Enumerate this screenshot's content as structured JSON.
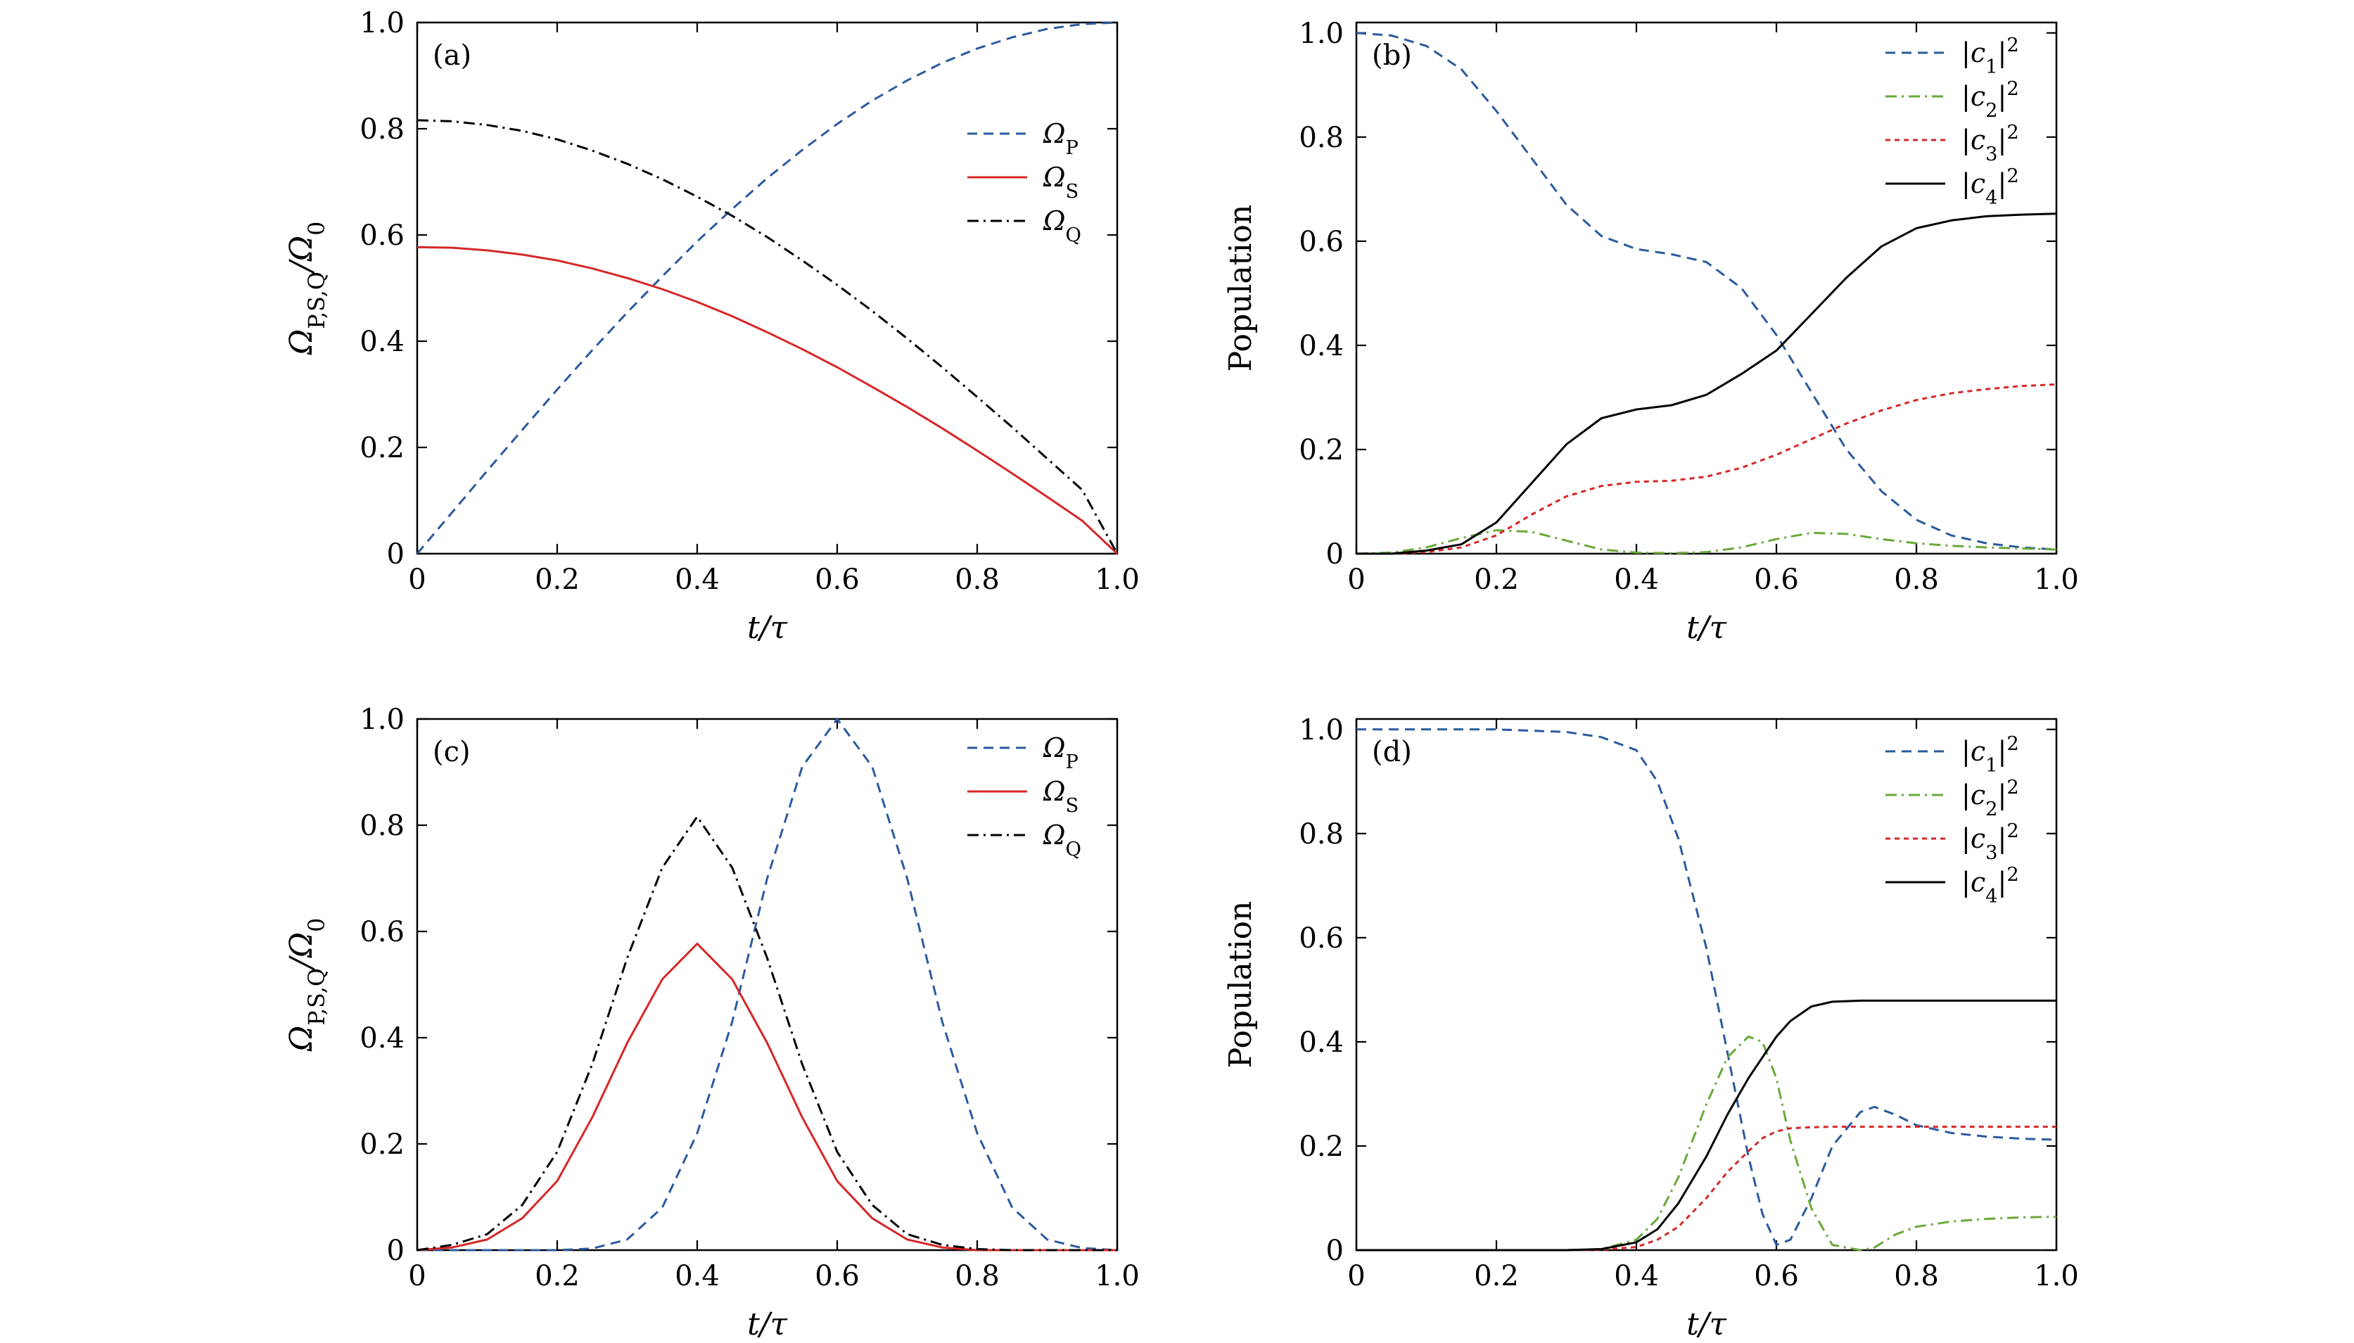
{
  "chart_data": [
    {
      "panel": "(a)",
      "type": "line",
      "xlabel": "t/τ",
      "ylabel": "Ω_{P,S,Q}/Ω_0",
      "xlim": [
        0,
        1
      ],
      "ylim": [
        0,
        1
      ],
      "xticks": [
        "0",
        "0.2",
        "0.4",
        "0.6",
        "0.8",
        "1.0"
      ],
      "yticks": [
        "0",
        "0.2",
        "0.4",
        "0.6",
        "0.8",
        "1.0"
      ],
      "legend_position": "top-right",
      "x": [
        0,
        0.05,
        0.1,
        0.15,
        0.2,
        0.25,
        0.3,
        0.35,
        0.4,
        0.45,
        0.5,
        0.55,
        0.6,
        0.65,
        0.7,
        0.75,
        0.8,
        0.85,
        0.9,
        0.95,
        1.0
      ],
      "series": [
        {
          "name": "Ω_P",
          "style": "dashed",
          "color": "#2b5a9e",
          "values": [
            0,
            0.078,
            0.156,
            0.233,
            0.309,
            0.383,
            0.454,
            0.522,
            0.588,
            0.649,
            0.707,
            0.76,
            0.809,
            0.853,
            0.891,
            0.924,
            0.951,
            0.972,
            0.988,
            0.997,
            1.0
          ]
        },
        {
          "name": "Ω_S",
          "style": "solid",
          "color": "#d62728",
          "values": [
            0.577,
            0.576,
            0.571,
            0.563,
            0.552,
            0.537,
            0.519,
            0.498,
            0.474,
            0.447,
            0.417,
            0.385,
            0.351,
            0.314,
            0.276,
            0.236,
            0.194,
            0.151,
            0.107,
            0.062,
            0.0
          ]
        },
        {
          "name": "Ω_Q",
          "style": "dashdot",
          "color": "#000000",
          "values": [
            0.816,
            0.814,
            0.807,
            0.796,
            0.78,
            0.759,
            0.734,
            0.705,
            0.672,
            0.636,
            0.596,
            0.552,
            0.506,
            0.457,
            0.405,
            0.351,
            0.295,
            0.238,
            0.179,
            0.12,
            0.0
          ]
        }
      ]
    },
    {
      "panel": "(b)",
      "type": "line",
      "xlabel": "t/τ",
      "ylabel": "Population",
      "xlim": [
        0,
        1
      ],
      "ylim": [
        0,
        1.02
      ],
      "xticks": [
        "0",
        "0.2",
        "0.4",
        "0.6",
        "0.8",
        "1.0"
      ],
      "yticks": [
        "0",
        "0.2",
        "0.4",
        "0.6",
        "0.8",
        "1.0"
      ],
      "legend_position": "top-right",
      "x": [
        0,
        0.05,
        0.1,
        0.15,
        0.2,
        0.25,
        0.3,
        0.35,
        0.4,
        0.45,
        0.5,
        0.55,
        0.6,
        0.65,
        0.7,
        0.75,
        0.8,
        0.85,
        0.9,
        0.95,
        1.0
      ],
      "series": [
        {
          "name": "|c1|^2",
          "style": "dashed",
          "color": "#2b5a9e",
          "values": [
            1.0,
            0.995,
            0.975,
            0.93,
            0.85,
            0.76,
            0.67,
            0.61,
            0.585,
            0.575,
            0.56,
            0.51,
            0.42,
            0.31,
            0.2,
            0.12,
            0.065,
            0.035,
            0.02,
            0.012,
            0.008
          ]
        },
        {
          "name": "|c2|^2",
          "style": "dashdot",
          "color": "#6aa83a",
          "values": [
            0,
            0.002,
            0.012,
            0.03,
            0.045,
            0.042,
            0.025,
            0.008,
            0.002,
            0.001,
            0.003,
            0.012,
            0.028,
            0.04,
            0.038,
            0.028,
            0.02,
            0.015,
            0.012,
            0.01,
            0.008
          ]
        },
        {
          "name": "|c3|^2",
          "style": "dotted",
          "color": "#d62728",
          "values": [
            0,
            0.0,
            0.003,
            0.012,
            0.035,
            0.075,
            0.11,
            0.13,
            0.138,
            0.14,
            0.148,
            0.165,
            0.19,
            0.22,
            0.25,
            0.275,
            0.295,
            0.308,
            0.316,
            0.322,
            0.325
          ]
        },
        {
          "name": "|c4|^2",
          "style": "solid",
          "color": "#000000",
          "values": [
            0,
            0.0,
            0.006,
            0.018,
            0.06,
            0.135,
            0.21,
            0.26,
            0.277,
            0.285,
            0.305,
            0.345,
            0.39,
            0.46,
            0.53,
            0.59,
            0.625,
            0.64,
            0.648,
            0.651,
            0.653
          ]
        }
      ]
    },
    {
      "panel": "(c)",
      "type": "line",
      "xlabel": "t/τ",
      "ylabel": "Ω_{P,S,Q}/Ω_0",
      "xlim": [
        0,
        1
      ],
      "ylim": [
        0,
        1
      ],
      "xticks": [
        "0",
        "0.2",
        "0.4",
        "0.6",
        "0.8",
        "1.0"
      ],
      "yticks": [
        "0",
        "0.2",
        "0.4",
        "0.6",
        "0.8",
        "1.0"
      ],
      "legend_position": "top-right",
      "x": [
        0,
        0.05,
        0.1,
        0.15,
        0.2,
        0.25,
        0.3,
        0.35,
        0.4,
        0.45,
        0.5,
        0.55,
        0.6,
        0.65,
        0.7,
        0.75,
        0.8,
        0.85,
        0.9,
        0.95,
        1.0
      ],
      "series": [
        {
          "name": "Ω_P",
          "style": "dashed",
          "color": "#2b5a9e",
          "values": [
            0,
            0,
            0,
            0,
            0.0,
            0.003,
            0.02,
            0.08,
            0.22,
            0.43,
            0.7,
            0.91,
            1.0,
            0.91,
            0.7,
            0.43,
            0.22,
            0.08,
            0.02,
            0.004,
            0.0
          ]
        },
        {
          "name": "Ω_S",
          "style": "solid",
          "color": "#d62728",
          "values": [
            0,
            0.005,
            0.02,
            0.06,
            0.13,
            0.25,
            0.39,
            0.51,
            0.577,
            0.51,
            0.39,
            0.25,
            0.13,
            0.06,
            0.02,
            0.005,
            0.0,
            0,
            0,
            0,
            0
          ]
        },
        {
          "name": "Ω_Q",
          "style": "dashdot",
          "color": "#000000",
          "values": [
            0,
            0.01,
            0.03,
            0.085,
            0.185,
            0.35,
            0.55,
            0.72,
            0.816,
            0.72,
            0.55,
            0.35,
            0.185,
            0.085,
            0.03,
            0.01,
            0.002,
            0,
            0,
            0,
            0
          ]
        }
      ]
    },
    {
      "panel": "(d)",
      "type": "line",
      "xlabel": "t/τ",
      "ylabel": "Population",
      "xlim": [
        0,
        1
      ],
      "ylim": [
        0,
        1.02
      ],
      "xticks": [
        "0",
        "0.2",
        "0.4",
        "0.6",
        "0.8",
        "1.0"
      ],
      "yticks": [
        "0",
        "0.2",
        "0.4",
        "0.6",
        "0.8",
        "1.0"
      ],
      "legend_position": "top-right",
      "x": [
        0,
        0.1,
        0.2,
        0.3,
        0.35,
        0.4,
        0.43,
        0.46,
        0.5,
        0.53,
        0.56,
        0.58,
        0.6,
        0.62,
        0.65,
        0.68,
        0.72,
        0.74,
        0.77,
        0.8,
        0.85,
        0.9,
        0.95,
        1.0
      ],
      "series": [
        {
          "name": "|c1|^2",
          "style": "dashed",
          "color": "#2b5a9e",
          "values": [
            1.0,
            1.0,
            1.0,
            0.995,
            0.985,
            0.96,
            0.9,
            0.79,
            0.58,
            0.38,
            0.18,
            0.07,
            0.01,
            0.02,
            0.1,
            0.2,
            0.265,
            0.275,
            0.26,
            0.24,
            0.225,
            0.218,
            0.214,
            0.212
          ]
        },
        {
          "name": "|c2|^2",
          "style": "dashdot",
          "color": "#6aa83a",
          "values": [
            0,
            0,
            0,
            0,
            0.002,
            0.02,
            0.06,
            0.14,
            0.28,
            0.37,
            0.41,
            0.4,
            0.33,
            0.21,
            0.08,
            0.01,
            0.0,
            0.005,
            0.03,
            0.045,
            0.055,
            0.06,
            0.063,
            0.064
          ]
        },
        {
          "name": "|c3|^2",
          "style": "dotted",
          "color": "#d62728",
          "values": [
            0,
            0,
            0,
            0,
            0.001,
            0.006,
            0.02,
            0.045,
            0.1,
            0.15,
            0.19,
            0.215,
            0.228,
            0.234,
            0.236,
            0.237,
            0.237,
            0.237,
            0.237,
            0.237,
            0.237,
            0.237,
            0.237,
            0.237
          ]
        },
        {
          "name": "|c4|^2",
          "style": "solid",
          "color": "#000000",
          "values": [
            0,
            0,
            0,
            0,
            0.002,
            0.015,
            0.04,
            0.09,
            0.18,
            0.26,
            0.33,
            0.37,
            0.41,
            0.44,
            0.468,
            0.477,
            0.479,
            0.479,
            0.479,
            0.479,
            0.479,
            0.479,
            0.479,
            0.479
          ]
        }
      ]
    }
  ]
}
